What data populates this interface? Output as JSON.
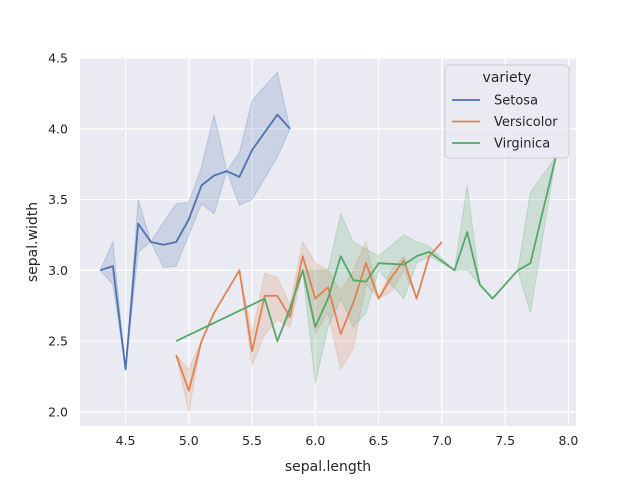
{
  "chart_data": {
    "type": "line",
    "title": "",
    "xlabel": "sepal.length",
    "ylabel": "sepal.width",
    "xlim": [
      4.14,
      8.06
    ],
    "ylim": [
      1.9,
      4.5
    ],
    "xticks": [
      "4.5",
      "5.0",
      "5.5",
      "6.0",
      "6.5",
      "7.0",
      "7.5",
      "8.0"
    ],
    "yticks": [
      "2.0",
      "2.5",
      "3.0",
      "3.5",
      "4.0",
      "4.5"
    ],
    "grid": true,
    "legend": {
      "title": "variety",
      "placement": "top-right"
    },
    "series": [
      {
        "name": "Setosa",
        "color": "#4c72b0",
        "x": [
          4.3,
          4.4,
          4.5,
          4.6,
          4.7,
          4.8,
          4.9,
          5.0,
          5.1,
          5.2,
          5.3,
          5.4,
          5.5,
          5.7,
          5.8
        ],
        "y": [
          3.0,
          3.03,
          2.3,
          3.33,
          3.2,
          3.18,
          3.2,
          3.36,
          3.6,
          3.67,
          3.7,
          3.66,
          3.85,
          4.1,
          4.0
        ],
        "lower": [
          3.0,
          2.9,
          2.3,
          3.13,
          3.2,
          3.02,
          3.03,
          3.25,
          3.47,
          3.4,
          3.7,
          3.46,
          3.5,
          3.8,
          4.0
        ],
        "upper": [
          3.0,
          3.2,
          2.3,
          3.5,
          3.2,
          3.34,
          3.47,
          3.48,
          3.73,
          4.1,
          3.7,
          3.83,
          4.2,
          4.4,
          4.0
        ]
      },
      {
        "name": "Versicolor",
        "color": "#dd8452",
        "x": [
          4.9,
          5.0,
          5.1,
          5.2,
          5.4,
          5.5,
          5.6,
          5.7,
          5.8,
          5.9,
          6.0,
          6.1,
          6.2,
          6.3,
          6.4,
          6.5,
          6.6,
          6.7,
          6.8,
          6.9,
          7.0
        ],
        "y": [
          2.4,
          2.15,
          2.5,
          2.7,
          3.0,
          2.43,
          2.82,
          2.82,
          2.67,
          3.1,
          2.8,
          2.88,
          2.55,
          2.77,
          3.05,
          2.8,
          2.95,
          3.07,
          2.8,
          3.1,
          3.2
        ],
        "lower": [
          2.4,
          2.0,
          2.5,
          2.7,
          3.0,
          2.33,
          2.55,
          2.65,
          2.6,
          3.0,
          2.55,
          2.7,
          2.3,
          2.45,
          2.9,
          2.8,
          2.85,
          3.0,
          2.8,
          3.1,
          3.2
        ],
        "upper": [
          2.4,
          2.3,
          2.5,
          2.7,
          3.0,
          2.55,
          2.98,
          2.95,
          2.75,
          3.2,
          3.05,
          3.0,
          2.85,
          3.0,
          3.2,
          2.8,
          3.0,
          3.1,
          2.8,
          3.1,
          3.2
        ]
      },
      {
        "name": "Virginica",
        "color": "#55a868",
        "x": [
          4.9,
          5.6,
          5.7,
          5.8,
          5.9,
          6.0,
          6.1,
          6.2,
          6.3,
          6.4,
          6.5,
          6.7,
          6.8,
          6.9,
          7.1,
          7.2,
          7.3,
          7.4,
          7.6,
          7.7,
          7.9
        ],
        "y": [
          2.5,
          2.8,
          2.5,
          2.73,
          3.0,
          2.6,
          2.8,
          3.1,
          2.93,
          2.92,
          3.05,
          3.04,
          3.1,
          3.13,
          3.0,
          3.27,
          2.9,
          2.8,
          3.0,
          3.05,
          3.8
        ],
        "lower": [
          2.5,
          2.8,
          2.5,
          2.7,
          3.0,
          2.2,
          2.6,
          2.8,
          2.6,
          2.7,
          3.0,
          2.8,
          3.05,
          3.1,
          3.0,
          3.0,
          2.9,
          2.8,
          3.0,
          2.7,
          3.8
        ],
        "upper": [
          2.5,
          2.8,
          2.5,
          2.75,
          3.0,
          3.0,
          3.0,
          3.4,
          3.2,
          3.15,
          3.1,
          3.25,
          3.2,
          3.17,
          3.0,
          3.6,
          2.9,
          2.8,
          3.0,
          3.55,
          3.8
        ]
      }
    ]
  }
}
